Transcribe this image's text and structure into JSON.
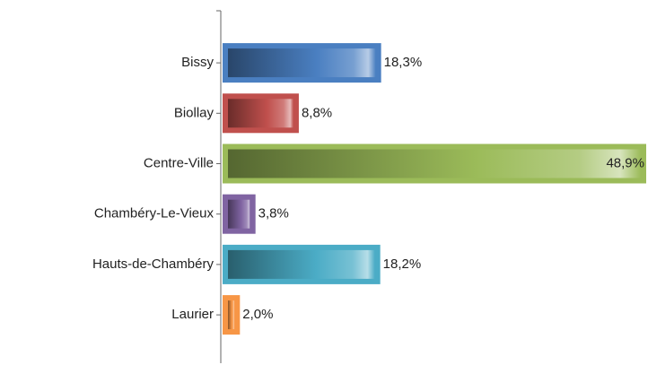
{
  "chart_data": {
    "type": "bar",
    "orientation": "horizontal",
    "categories": [
      "Bissy",
      "Biollay",
      "Centre-Ville",
      "Chambéry-Le-Vieux",
      "Hauts-de-Chambéry",
      "Laurier"
    ],
    "values": [
      18.3,
      8.8,
      48.9,
      3.8,
      18.2,
      2.0
    ],
    "value_labels": [
      "18,3%",
      "8,8%",
      "48,9%",
      "3,8%",
      "18,2%",
      "2,0%"
    ],
    "colors": [
      "#4a7fc1",
      "#c0504d",
      "#9bbb59",
      "#8064a2",
      "#4bacc6",
      "#f79646"
    ]
  }
}
